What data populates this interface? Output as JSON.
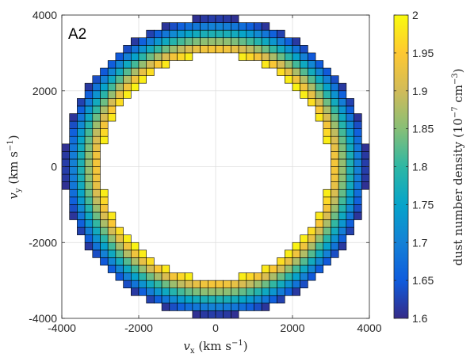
{
  "chart_data": {
    "type": "heatmap",
    "panel_label": "A2",
    "xlabel": {
      "var": "v",
      "sub": "x",
      "unit_pre": " (km s",
      "exp": "−1",
      "unit_post": ")"
    },
    "ylabel": {
      "var": "v",
      "sub": "y",
      "unit_pre": " (km s",
      "exp": "−1",
      "unit_post": ")"
    },
    "xlim": [
      -4000,
      4000
    ],
    "ylim": [
      -4000,
      4000
    ],
    "xticks": [
      -4000,
      -2000,
      0,
      2000,
      4000
    ],
    "yticks": [
      -4000,
      -2000,
      0,
      2000,
      4000
    ],
    "xtick_labels": [
      "-4000",
      "-2000",
      "0",
      "2000",
      "4000"
    ],
    "ytick_labels": [
      "-4000",
      "-2000",
      "0",
      "2000",
      "4000"
    ],
    "grid": true,
    "cell_size": 200,
    "shell": {
      "inner_radius": 2950,
      "outer_radius": 3950,
      "value_inner": 2.0,
      "value_outer": 1.6
    },
    "colorbar": {
      "label": {
        "text": "dust number density (10",
        "exp": "−7",
        "mid": " cm",
        "exp2": "−3",
        "post": ")"
      },
      "range": [
        1.6,
        2.0
      ],
      "ticks": [
        1.6,
        1.65,
        1.7,
        1.75,
        1.8,
        1.85,
        1.9,
        1.95,
        2.0
      ],
      "tick_labels": [
        "1.6",
        "1.65",
        "1.7",
        "1.75",
        "1.8",
        "1.85",
        "1.9",
        "1.95",
        "2"
      ],
      "colormap": "parula",
      "colors": [
        "#352A87",
        "#0F5CDD",
        "#1481D6",
        "#06A4CA",
        "#2EB7A4",
        "#87BF77",
        "#D1BB59",
        "#FEC832",
        "#F9FB0E"
      ]
    }
  }
}
